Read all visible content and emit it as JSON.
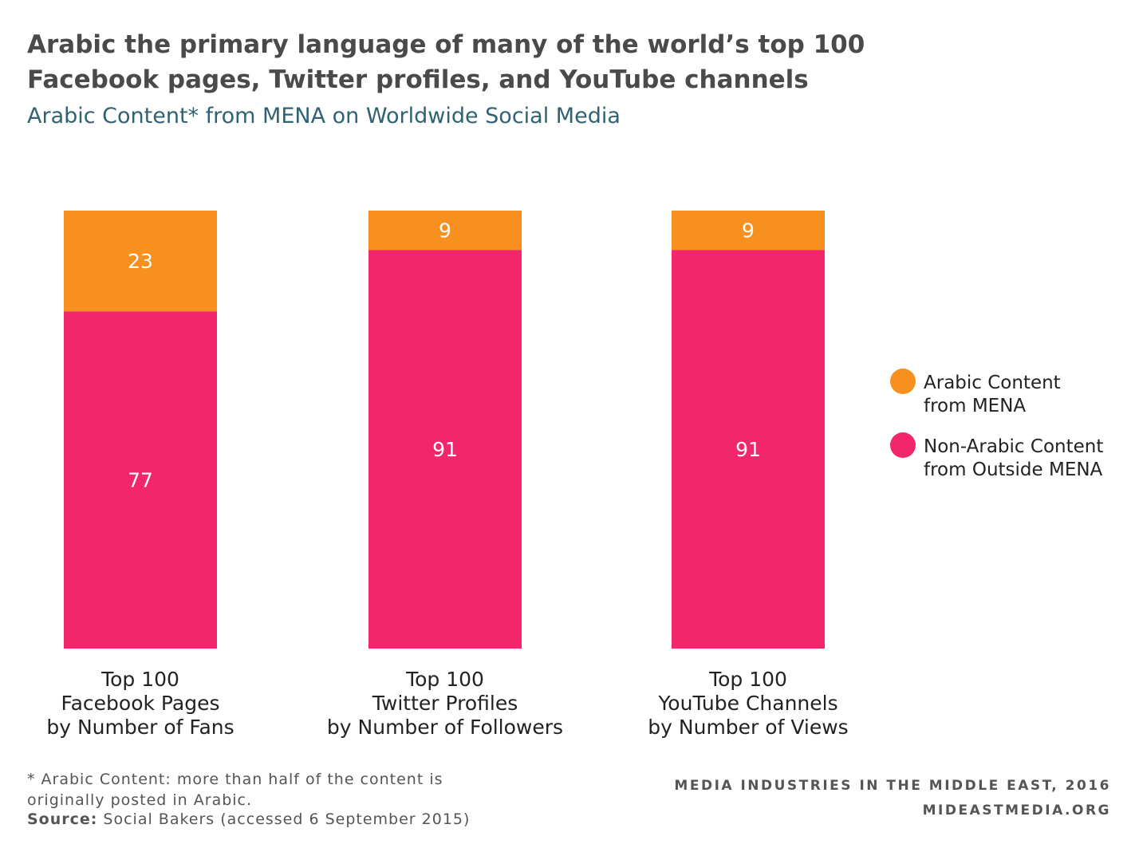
{
  "title_line1": "Arabic the primary language of many of the world’s top 100",
  "title_line2": "Facebook pages, Twitter profiles, and YouTube channels",
  "subtitle": "Arabic Content* from MENA on Worldwide Social Media",
  "footnote_line1": "* Arabic Content: more than half of the content is",
  "footnote_line2": "originally posted in Arabic.",
  "source_label": "Source:",
  "source_text": " Social Bakers (accessed 6 September 2015)",
  "brand_line1": "MEDIA INDUSTRIES IN THE MIDDLE EAST, 2016",
  "brand_line2": "MIDEASTMEDIA.ORG",
  "chart_data": {
    "type": "bar",
    "stacked": true,
    "categories": [
      [
        "Top 100",
        "Facebook Pages",
        "by Number of Fans"
      ],
      [
        "Top 100",
        "Twitter Profiles",
        "by Number of Followers"
      ],
      [
        "Top 100",
        "YouTube Channels",
        "by Number of Views"
      ]
    ],
    "series": [
      {
        "name": "Arabic Content from MENA",
        "legend_lines": [
          "Arabic Content",
          "from MENA"
        ],
        "color": "#f7901e",
        "values": [
          23,
          9,
          9
        ]
      },
      {
        "name": "Non-Arabic Content from Outside MENA",
        "legend_lines": [
          "Non-Arabic Content",
          "from Outside MENA"
        ],
        "color": "#f2266b",
        "values": [
          77,
          91,
          91
        ]
      }
    ],
    "ylim": [
      0,
      100
    ],
    "data_labels": true,
    "grid": false,
    "legend_position": "right"
  }
}
